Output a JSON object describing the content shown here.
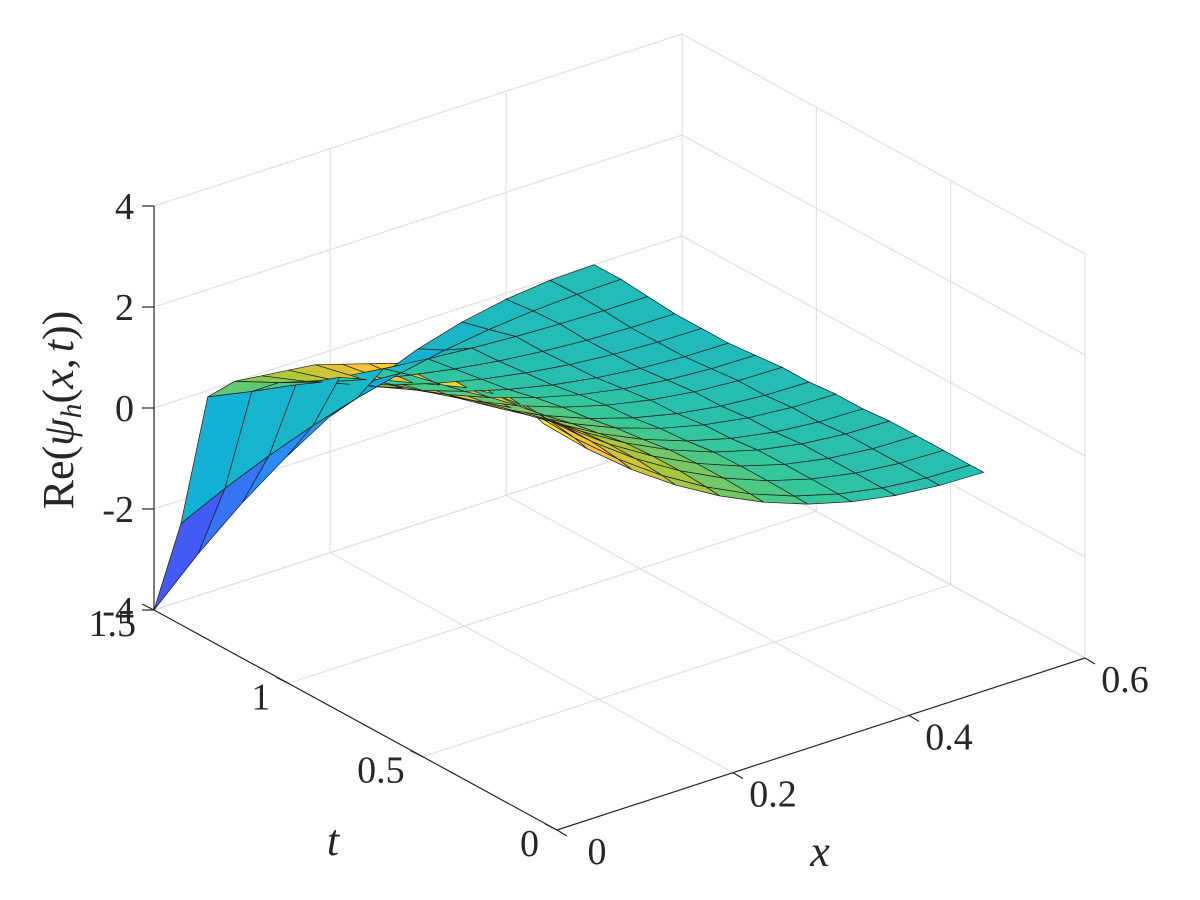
{
  "chart_data": {
    "type": "surface",
    "title": "",
    "xlabel": "x",
    "ylabel": "t",
    "zlabel_parts": {
      "re": "Re(",
      "psi": "ψ",
      "sub": "h",
      "args": "(",
      "x": "x",
      "comma": ",",
      "t": "t",
      "close": "))"
    },
    "xlim": [
      0,
      0.6
    ],
    "ylim": [
      0,
      1.5
    ],
    "zlim": [
      -4,
      4
    ],
    "xticks": [
      0,
      0.2,
      0.4,
      0.6
    ],
    "yticks": [
      0,
      0.5,
      1,
      1.5
    ],
    "zticks": [
      -4,
      -2,
      0,
      2,
      4
    ],
    "xtick_labels": [
      "0",
      "0.2",
      "0.4",
      "0.6"
    ],
    "ytick_labels": [
      "0",
      "0.5",
      "1",
      "1.5"
    ],
    "ztick_labels": [
      "-4",
      "-2",
      "0",
      "2",
      "4"
    ],
    "grid": true,
    "colormap": "parula",
    "surface": {
      "x": [
        0,
        0.05,
        0.1,
        0.15,
        0.2,
        0.25,
        0.3,
        0.35,
        0.4,
        0.45,
        0.5
      ],
      "t": [
        1.5,
        1.4,
        1.3,
        1.2,
        1.1,
        1.0,
        0.9,
        0.8,
        0.7,
        0.6,
        0.5,
        0.4,
        0.3,
        0.2,
        0.1,
        0.05
      ],
      "z_at_x0": [
        -4.0,
        -2.0,
        0.8,
        1.4,
        1.8,
        2.2,
        2.6,
        2.9,
        3.2,
        3.5,
        3.8,
        4.0,
        4.1,
        4.1,
        4.0,
        3.9
      ],
      "z_at_xmax": [
        0.0,
        0.0,
        -0.05,
        -0.1,
        -0.1,
        -0.1,
        -0.05,
        0.0,
        0.0,
        0.05,
        0.05,
        0.1,
        0.1,
        0.1,
        0.1,
        0.1
      ]
    }
  }
}
